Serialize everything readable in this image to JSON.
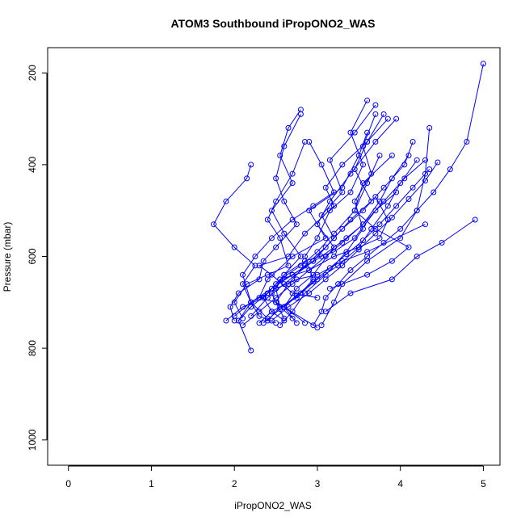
{
  "chart_data": {
    "type": "line",
    "title": "ATOM3 Southbound iPropONO2_WAS",
    "xlabel": "iPropONO2_WAS",
    "ylabel": "Pressure (mbar)",
    "xlim": [
      -0.25,
      5.2
    ],
    "ylim": [
      1055,
      145
    ],
    "y_reversed": true,
    "x_ticks": [
      0,
      1,
      2,
      3,
      4,
      5
    ],
    "y_ticks": [
      200,
      400,
      600,
      800,
      1000
    ],
    "grid": false,
    "marker": "open-circle",
    "color": "#0000ff",
    "series": [
      {
        "x": [
          2.2,
          2.05,
          2.2,
          2.1,
          2.25,
          2.0,
          1.75,
          1.9,
          2.15,
          2.2
        ],
        "y": [
          805,
          740,
          700,
          660,
          620,
          580,
          530,
          480,
          430,
          400
        ]
      },
      {
        "x": [
          3.0,
          2.5,
          2.3,
          2.4,
          2.7,
          3.1,
          2.9,
          3.3,
          3.5,
          3.6
        ],
        "y": [
          755,
          700,
          690,
          650,
          600,
          560,
          500,
          450,
          380,
          330
        ]
      },
      {
        "x": [
          3.05,
          3.2,
          3.3,
          3.6,
          4.0,
          4.2,
          4.3,
          4.35
        ],
        "y": [
          750,
          700,
          660,
          610,
          560,
          500,
          420,
          320
        ]
      },
      {
        "x": [
          3.1,
          3.4,
          3.9,
          4.2,
          4.5,
          4.9
        ],
        "y": [
          720,
          680,
          650,
          600,
          570,
          520
        ]
      },
      {
        "x": [
          3.15,
          3.6,
          3.9,
          4.1,
          3.7,
          3.45,
          3.55,
          3.9
        ],
        "y": [
          670,
          640,
          610,
          580,
          540,
          500,
          440,
          380
        ]
      },
      {
        "x": [
          3.0,
          2.7,
          2.45,
          2.3,
          2.65,
          2.85,
          3.2,
          3.1,
          3.3,
          3.6,
          3.8
        ],
        "y": [
          690,
          680,
          640,
          620,
          600,
          550,
          490,
          450,
          400,
          350,
          290
        ]
      },
      {
        "x": [
          2.6,
          2.45,
          2.35,
          2.55,
          2.9,
          3.2,
          3.5,
          3.75,
          3.85,
          3.7
        ],
        "y": [
          740,
          720,
          690,
          650,
          630,
          600,
          580,
          560,
          520,
          470
        ]
      },
      {
        "x": [
          2.5,
          2.3,
          2.2,
          2.5,
          2.75,
          3.0,
          3.3,
          3.6,
          4.3
        ],
        "y": [
          745,
          730,
          700,
          670,
          650,
          640,
          610,
          590,
          530
        ]
      },
      {
        "x": [
          2.1,
          2.0,
          2.15,
          2.4,
          2.65,
          2.55,
          2.4,
          2.5,
          2.7,
          2.85
        ],
        "y": [
          735,
          700,
          660,
          640,
          620,
          560,
          520,
          480,
          420,
          350
        ]
      },
      {
        "x": [
          2.4,
          2.2,
          2.1,
          2.25,
          2.45,
          2.7,
          2.95,
          3.2,
          3.05,
          2.9
        ],
        "y": [
          735,
          700,
          640,
          600,
          560,
          520,
          490,
          460,
          400,
          350
        ]
      },
      {
        "x": [
          2.0,
          1.95,
          2.05,
          2.3,
          2.35,
          2.5,
          2.75,
          2.6,
          2.5,
          2.6,
          2.8
        ],
        "y": [
          740,
          710,
          680,
          650,
          610,
          580,
          530,
          480,
          430,
          360,
          290
        ]
      },
      {
        "x": [
          2.7,
          2.5,
          2.45,
          2.6,
          2.85,
          3.2,
          3.45,
          3.7,
          3.95
        ],
        "y": [
          735,
          700,
          680,
          640,
          610,
          590,
          560,
          500,
          460
        ]
      },
      {
        "x": [
          2.4,
          2.55,
          2.5,
          2.6,
          2.8,
          2.6,
          2.45,
          2.7,
          2.55,
          2.65,
          2.8
        ],
        "y": [
          740,
          710,
          670,
          640,
          600,
          550,
          500,
          440,
          380,
          320,
          280
        ]
      },
      {
        "x": [
          2.3,
          2.45,
          2.75,
          2.95,
          2.85,
          3.0,
          3.15,
          3.4,
          3.55,
          3.4,
          3.6
        ],
        "y": [
          745,
          720,
          690,
          650,
          600,
          560,
          500,
          460,
          400,
          330,
          260
        ]
      },
      {
        "x": [
          2.85,
          2.6,
          2.75,
          2.95,
          3.2,
          3.0,
          3.15,
          3.4,
          3.7,
          3.95
        ],
        "y": [
          745,
          710,
          670,
          640,
          580,
          530,
          480,
          420,
          350,
          300
        ]
      },
      {
        "x": [
          2.2,
          2.4,
          2.6,
          2.95,
          3.2,
          3.4,
          3.65,
          3.45,
          3.6,
          3.85
        ],
        "y": [
          730,
          690,
          660,
          610,
          560,
          520,
          480,
          410,
          350,
          300
        ]
      },
      {
        "x": [
          2.55,
          2.7,
          2.85,
          3.1,
          3.35,
          3.55,
          3.45,
          3.65,
          3.55,
          3.7
        ],
        "y": [
          750,
          720,
          680,
          640,
          590,
          540,
          480,
          420,
          360,
          290
        ]
      },
      {
        "x": [
          1.9,
          2.1,
          2.35,
          2.5,
          2.7,
          2.95,
          3.2,
          3.05,
          3.3,
          3.15,
          3.45,
          3.7
        ],
        "y": [
          740,
          710,
          690,
          660,
          640,
          610,
          560,
          510,
          460,
          390,
          330,
          270
        ]
      },
      {
        "x": [
          2.0,
          2.2,
          2.45,
          2.7,
          3.05,
          3.35,
          3.55,
          3.75,
          3.9,
          4.1
        ],
        "y": [
          730,
          700,
          670,
          640,
          600,
          560,
          530,
          480,
          430,
          380
        ]
      },
      {
        "x": [
          2.6,
          2.5,
          2.65,
          2.85,
          3.1,
          3.3,
          3.55,
          3.8,
          4.05,
          4.15
        ],
        "y": [
          735,
          700,
          660,
          620,
          580,
          540,
          500,
          450,
          400,
          350
        ]
      },
      {
        "x": [
          2.05,
          2.2,
          2.4,
          2.55,
          2.8,
          3.0,
          3.2,
          3.45,
          3.6,
          3.75
        ],
        "y": [
          740,
          710,
          680,
          650,
          620,
          590,
          550,
          500,
          440,
          380
        ]
      },
      {
        "x": [
          2.75,
          2.6,
          2.8,
          3.0,
          3.25,
          3.5,
          3.65,
          3.85,
          4.0,
          4.2
        ],
        "y": [
          745,
          710,
          680,
          650,
          620,
          580,
          540,
          490,
          440,
          390
        ]
      },
      {
        "x": [
          2.1,
          2.3,
          2.5,
          2.7,
          2.9,
          3.1,
          3.3,
          3.55,
          3.8,
          4.05,
          4.3
        ],
        "y": [
          750,
          720,
          690,
          660,
          630,
          600,
          570,
          530,
          480,
          430,
          390
        ]
      },
      {
        "x": [
          2.35,
          2.55,
          2.75,
          2.95,
          3.15,
          3.35,
          3.55,
          3.75,
          3.95,
          4.15,
          4.35
        ],
        "y": [
          745,
          715,
          685,
          655,
          625,
          595,
          565,
          530,
          490,
          450,
          410
        ]
      },
      {
        "x": [
          2.45,
          2.65,
          2.9,
          3.1,
          3.3,
          3.5,
          3.7,
          3.9,
          4.1,
          4.3,
          4.45
        ],
        "y": [
          740,
          710,
          680,
          650,
          620,
          585,
          550,
          515,
          475,
          435,
          395
        ]
      },
      {
        "x": [
          2.95,
          3.05,
          3.1,
          3.25,
          3.4,
          3.6,
          3.8,
          4.0,
          4.2,
          4.4,
          4.6,
          4.8,
          5.0
        ],
        "y": [
          750,
          720,
          690,
          660,
          630,
          600,
          570,
          540,
          500,
          460,
          410,
          350,
          180
        ]
      }
    ]
  }
}
